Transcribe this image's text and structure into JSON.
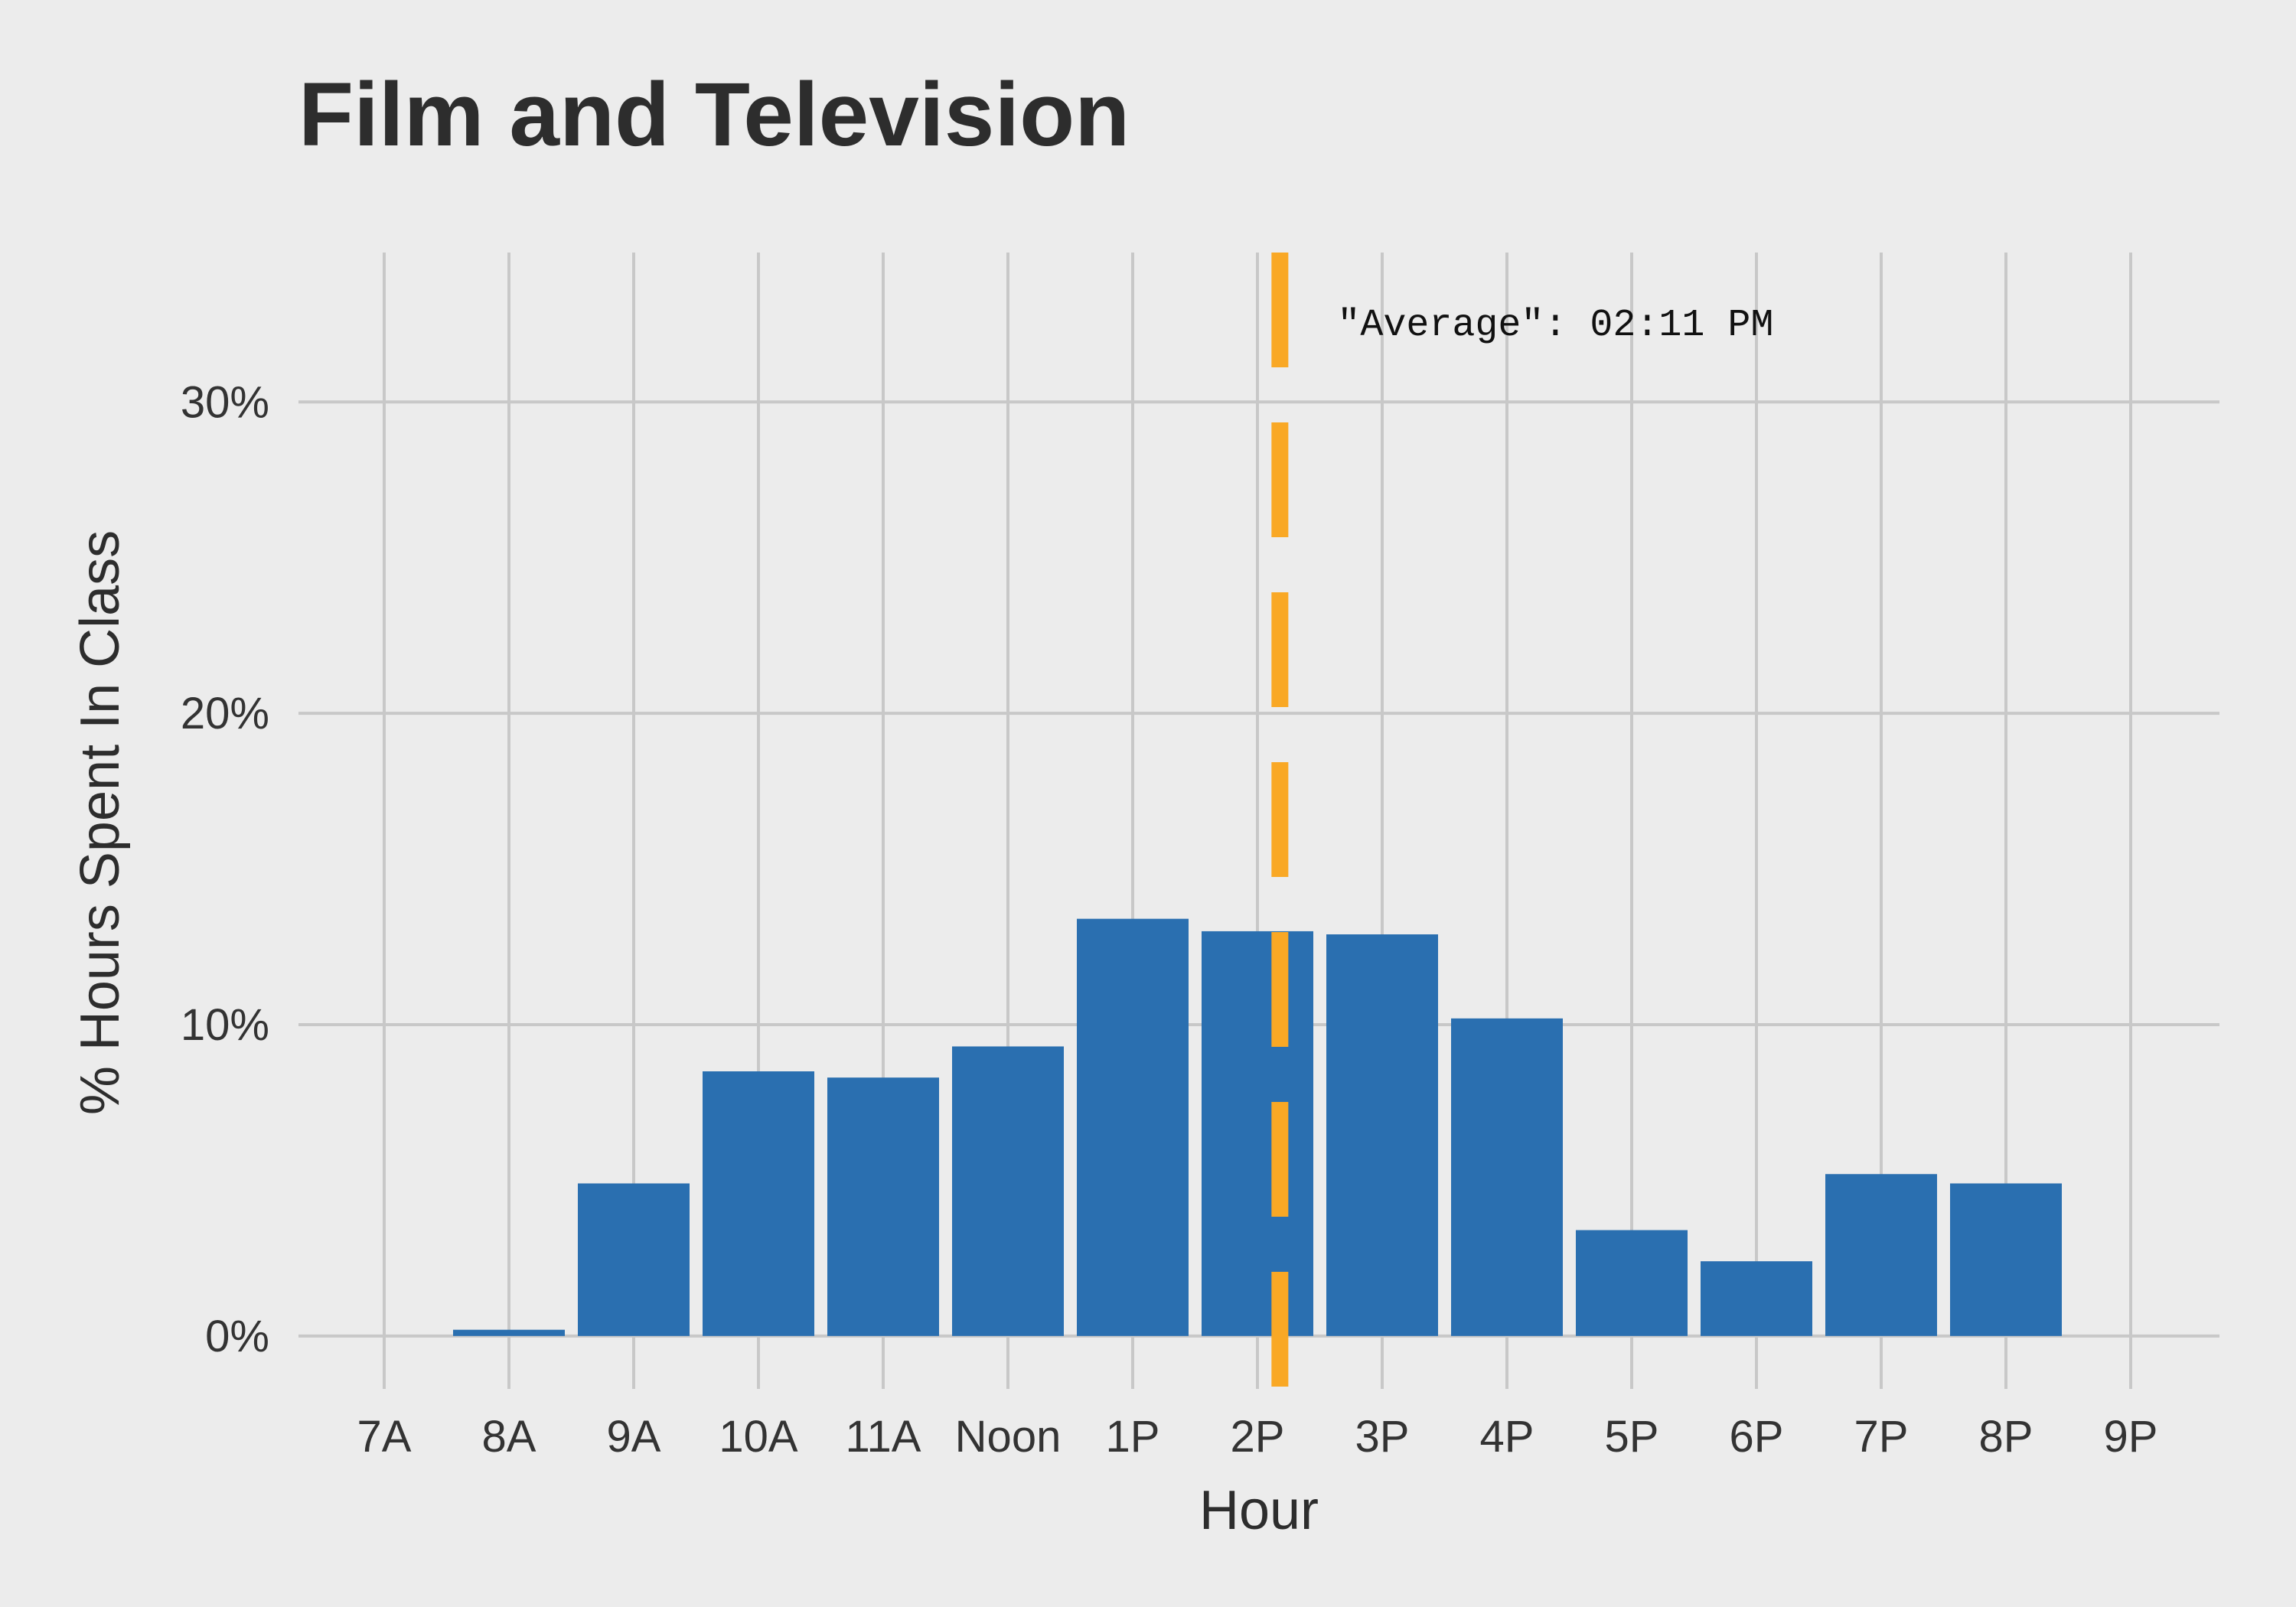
{
  "chart_data": {
    "type": "bar",
    "title": "Film and Television",
    "xlabel": "Hour",
    "ylabel": "% Hours Spent In Class",
    "categories": [
      "7A",
      "8A",
      "9A",
      "10A",
      "11A",
      "Noon",
      "1P",
      "2P",
      "3P",
      "4P",
      "5P",
      "6P",
      "7P",
      "8P",
      "9P"
    ],
    "values": [
      0,
      0.2,
      4.9,
      8.5,
      8.3,
      9.3,
      13.4,
      13.0,
      12.9,
      10.2,
      3.4,
      2.4,
      5.2,
      4.9,
      0
    ],
    "ylim": [
      -1.7,
      34.8
    ],
    "yticks": [
      0,
      10,
      20,
      30
    ],
    "ytick_labels": [
      "0%",
      "10%",
      "20%",
      "30%"
    ],
    "grid": true,
    "average": {
      "x": 14.18,
      "label": "\"Average\": 02:11 PM",
      "color": "#f9a825",
      "style": "dashed"
    },
    "colors": {
      "bar": "#2a6fb0",
      "background": "#ececec",
      "grid": "#c8c8c8",
      "text": "#2d2d2d"
    }
  }
}
